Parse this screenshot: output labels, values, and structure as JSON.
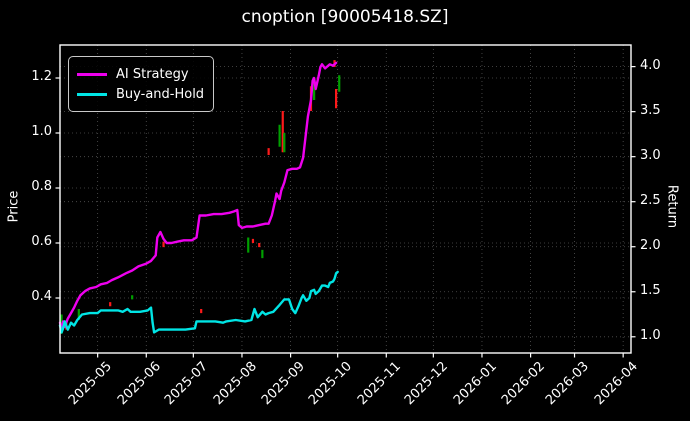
{
  "window": {
    "kind": "matplotlib-style dark chart"
  },
  "legend": {
    "items": [
      {
        "label": "AI Strategy",
        "color": "#ee00ee"
      },
      {
        "label": "Buy-and-Hold",
        "color": "#00e5e5"
      }
    ]
  },
  "chart_data": {
    "type": "line",
    "title": "cnoption [90005418.SZ]",
    "ylabel_left": "Price",
    "ylabel_right": "Return",
    "grid": true,
    "background": "#000000",
    "foreground": "#ffffff",
    "legend_position": "upper left",
    "xlim": [
      "2025-04-07",
      "2026-04-06"
    ],
    "ylim_left": [
      0.2,
      1.32
    ],
    "ylim_right": [
      0.82,
      4.24
    ],
    "x_ticks": [
      {
        "date": "2025-05-01",
        "label": "2025-05"
      },
      {
        "date": "2025-06-01",
        "label": "2025-06"
      },
      {
        "date": "2025-07-01",
        "label": "2025-07"
      },
      {
        "date": "2025-08-01",
        "label": "2025-08"
      },
      {
        "date": "2025-09-01",
        "label": "2025-09"
      },
      {
        "date": "2025-10-01",
        "label": "2025-10"
      },
      {
        "date": "2025-11-01",
        "label": "2025-11"
      },
      {
        "date": "2025-12-01",
        "label": "2025-12"
      },
      {
        "date": "2026-01-01",
        "label": "2026-01"
      },
      {
        "date": "2026-02-01",
        "label": "2026-02"
      },
      {
        "date": "2026-03-01",
        "label": "2026-03"
      },
      {
        "date": "2026-04-01",
        "label": "2026-04"
      }
    ],
    "left_ticks": [
      {
        "value": 0.4,
        "label": "0.4"
      },
      {
        "value": 0.6,
        "label": "0.6"
      },
      {
        "value": 0.8,
        "label": "0.8"
      },
      {
        "value": 1.0,
        "label": "1.0"
      },
      {
        "value": 1.2,
        "label": "1.2"
      }
    ],
    "right_ticks": [
      {
        "value": 1.0,
        "label": "1.0"
      },
      {
        "value": 1.5,
        "label": "1.5"
      },
      {
        "value": 2.0,
        "label": "2.0"
      },
      {
        "value": 2.5,
        "label": "2.5"
      },
      {
        "value": 3.0,
        "label": "3.0"
      },
      {
        "value": 3.5,
        "label": "3.5"
      },
      {
        "value": 4.0,
        "label": "4.0"
      }
    ],
    "series": [
      {
        "name": "AI Strategy",
        "color": "#ee00ee",
        "axis": "left",
        "points": [
          [
            "2025-04-07",
            0.31
          ],
          [
            "2025-04-08",
            0.28
          ],
          [
            "2025-04-09",
            0.315
          ],
          [
            "2025-04-10",
            0.295
          ],
          [
            "2025-04-12",
            0.325
          ],
          [
            "2025-04-14",
            0.345
          ],
          [
            "2025-04-16",
            0.365
          ],
          [
            "2025-04-18",
            0.39
          ],
          [
            "2025-04-20",
            0.41
          ],
          [
            "2025-04-23",
            0.425
          ],
          [
            "2025-04-26",
            0.435
          ],
          [
            "2025-04-30",
            0.44
          ],
          [
            "2025-05-03",
            0.45
          ],
          [
            "2025-05-07",
            0.455
          ],
          [
            "2025-05-10",
            0.465
          ],
          [
            "2025-05-14",
            0.475
          ],
          [
            "2025-05-19",
            0.49
          ],
          [
            "2025-05-23",
            0.5
          ],
          [
            "2025-05-27",
            0.515
          ],
          [
            "2025-06-01",
            0.525
          ],
          [
            "2025-06-04",
            0.535
          ],
          [
            "2025-06-07",
            0.555
          ],
          [
            "2025-06-08",
            0.62
          ],
          [
            "2025-06-10",
            0.64
          ],
          [
            "2025-06-12",
            0.615
          ],
          [
            "2025-06-14",
            0.6
          ],
          [
            "2025-06-17",
            0.6
          ],
          [
            "2025-06-21",
            0.605
          ],
          [
            "2025-06-25",
            0.61
          ],
          [
            "2025-06-30",
            0.61
          ],
          [
            "2025-07-03",
            0.62
          ],
          [
            "2025-07-05",
            0.7
          ],
          [
            "2025-07-09",
            0.7
          ],
          [
            "2025-07-14",
            0.705
          ],
          [
            "2025-07-19",
            0.705
          ],
          [
            "2025-07-24",
            0.71
          ],
          [
            "2025-07-27",
            0.715
          ],
          [
            "2025-07-29",
            0.72
          ],
          [
            "2025-07-30",
            0.665
          ],
          [
            "2025-08-01",
            0.655
          ],
          [
            "2025-08-04",
            0.66
          ],
          [
            "2025-08-08",
            0.66
          ],
          [
            "2025-08-12",
            0.665
          ],
          [
            "2025-08-16",
            0.67
          ],
          [
            "2025-08-18",
            0.67
          ],
          [
            "2025-08-20",
            0.7
          ],
          [
            "2025-08-22",
            0.75
          ],
          [
            "2025-08-23",
            0.78
          ],
          [
            "2025-08-25",
            0.76
          ],
          [
            "2025-08-26",
            0.79
          ],
          [
            "2025-08-28",
            0.82
          ],
          [
            "2025-08-30",
            0.865
          ],
          [
            "2025-09-02",
            0.87
          ],
          [
            "2025-09-05",
            0.87
          ],
          [
            "2025-09-07",
            0.875
          ],
          [
            "2025-09-09",
            0.91
          ],
          [
            "2025-09-10",
            0.96
          ],
          [
            "2025-09-11",
            1.01
          ],
          [
            "2025-09-12",
            1.06
          ],
          [
            "2025-09-14",
            1.12
          ],
          [
            "2025-09-15",
            1.19
          ],
          [
            "2025-09-16",
            1.2
          ],
          [
            "2025-09-17",
            1.16
          ],
          [
            "2025-09-19",
            1.21
          ],
          [
            "2025-09-20",
            1.24
          ],
          [
            "2025-09-21",
            1.25
          ],
          [
            "2025-09-23",
            1.235
          ],
          [
            "2025-09-24",
            1.24
          ],
          [
            "2025-09-26",
            1.25
          ],
          [
            "2025-09-28",
            1.245
          ],
          [
            "2025-09-30",
            1.255
          ]
        ]
      },
      {
        "name": "Buy-and-Hold",
        "color": "#00e5e5",
        "axis": "left",
        "points": [
          [
            "2025-04-07",
            0.3
          ],
          [
            "2025-04-08",
            0.275
          ],
          [
            "2025-04-09",
            0.29
          ],
          [
            "2025-04-10",
            0.315
          ],
          [
            "2025-04-12",
            0.285
          ],
          [
            "2025-04-14",
            0.31
          ],
          [
            "2025-04-16",
            0.3
          ],
          [
            "2025-04-18",
            0.32
          ],
          [
            "2025-04-21",
            0.34
          ],
          [
            "2025-04-26",
            0.345
          ],
          [
            "2025-05-01",
            0.345
          ],
          [
            "2025-05-03",
            0.355
          ],
          [
            "2025-05-10",
            0.355
          ],
          [
            "2025-05-14",
            0.355
          ],
          [
            "2025-05-17",
            0.35
          ],
          [
            "2025-05-20",
            0.36
          ],
          [
            "2025-05-22",
            0.35
          ],
          [
            "2025-05-28",
            0.35
          ],
          [
            "2025-06-02",
            0.355
          ],
          [
            "2025-06-04",
            0.365
          ],
          [
            "2025-06-05",
            0.31
          ],
          [
            "2025-06-06",
            0.275
          ],
          [
            "2025-06-09",
            0.285
          ],
          [
            "2025-06-14",
            0.285
          ],
          [
            "2025-06-20",
            0.285
          ],
          [
            "2025-06-26",
            0.285
          ],
          [
            "2025-07-02",
            0.29
          ],
          [
            "2025-07-03",
            0.315
          ],
          [
            "2025-07-09",
            0.315
          ],
          [
            "2025-07-15",
            0.315
          ],
          [
            "2025-07-20",
            0.31
          ],
          [
            "2025-07-22",
            0.315
          ],
          [
            "2025-07-28",
            0.32
          ],
          [
            "2025-08-03",
            0.315
          ],
          [
            "2025-08-07",
            0.32
          ],
          [
            "2025-08-09",
            0.36
          ],
          [
            "2025-08-11",
            0.33
          ],
          [
            "2025-08-14",
            0.35
          ],
          [
            "2025-08-16",
            0.34
          ],
          [
            "2025-08-18",
            0.345
          ],
          [
            "2025-08-21",
            0.35
          ],
          [
            "2025-08-25",
            0.375
          ],
          [
            "2025-08-28",
            0.395
          ],
          [
            "2025-08-31",
            0.395
          ],
          [
            "2025-09-02",
            0.36
          ],
          [
            "2025-09-04",
            0.345
          ],
          [
            "2025-09-06",
            0.37
          ],
          [
            "2025-09-08",
            0.4
          ],
          [
            "2025-09-09",
            0.41
          ],
          [
            "2025-09-11",
            0.39
          ],
          [
            "2025-09-13",
            0.4
          ],
          [
            "2025-09-14",
            0.425
          ],
          [
            "2025-09-16",
            0.43
          ],
          [
            "2025-09-17",
            0.415
          ],
          [
            "2025-09-19",
            0.425
          ],
          [
            "2025-09-21",
            0.445
          ],
          [
            "2025-09-23",
            0.445
          ],
          [
            "2025-09-25",
            0.44
          ],
          [
            "2025-09-26",
            0.455
          ],
          [
            "2025-09-28",
            0.46
          ],
          [
            "2025-09-29",
            0.47
          ],
          [
            "2025-09-30",
            0.49
          ],
          [
            "2025-10-01",
            0.495
          ]
        ]
      }
    ],
    "candles": [
      {
        "date": "2025-04-08",
        "low": 0.27,
        "high": 0.34,
        "color": "green"
      },
      {
        "date": "2025-04-11",
        "low": 0.285,
        "high": 0.315,
        "color": "red"
      },
      {
        "date": "2025-04-19",
        "low": 0.32,
        "high": 0.36,
        "color": "green"
      },
      {
        "date": "2025-05-09",
        "low": 0.37,
        "high": 0.385,
        "color": "red"
      },
      {
        "date": "2025-05-23",
        "low": 0.395,
        "high": 0.41,
        "color": "green"
      },
      {
        "date": "2025-06-12",
        "low": 0.585,
        "high": 0.605,
        "color": "red"
      },
      {
        "date": "2025-07-06",
        "low": 0.345,
        "high": 0.36,
        "color": "red"
      },
      {
        "date": "2025-08-05",
        "low": 0.565,
        "high": 0.62,
        "color": "green"
      },
      {
        "date": "2025-08-08",
        "low": 0.6,
        "high": 0.615,
        "color": "red"
      },
      {
        "date": "2025-08-12",
        "low": 0.585,
        "high": 0.6,
        "color": "red"
      },
      {
        "date": "2025-08-14",
        "low": 0.545,
        "high": 0.575,
        "color": "green"
      },
      {
        "date": "2025-08-18",
        "low": 0.92,
        "high": 0.945,
        "color": "red"
      },
      {
        "date": "2025-08-25",
        "low": 0.95,
        "high": 1.03,
        "color": "green"
      },
      {
        "date": "2025-08-27",
        "low": 0.93,
        "high": 1.08,
        "color": "red"
      },
      {
        "date": "2025-08-28",
        "low": 0.93,
        "high": 1.0,
        "color": "green"
      },
      {
        "date": "2025-09-14",
        "low": 1.08,
        "high": 1.17,
        "color": "red"
      },
      {
        "date": "2025-09-16",
        "low": 1.12,
        "high": 1.18,
        "color": "green"
      },
      {
        "date": "2025-09-29",
        "low": 1.24,
        "high": 1.265,
        "color": "red"
      },
      {
        "date": "2025-09-30",
        "low": 1.09,
        "high": 1.16,
        "color": "red"
      },
      {
        "date": "2025-10-02",
        "low": 1.15,
        "high": 1.21,
        "color": "green"
      }
    ],
    "candle_colors": {
      "green": "#00a000",
      "red": "#fd1a1a"
    }
  }
}
